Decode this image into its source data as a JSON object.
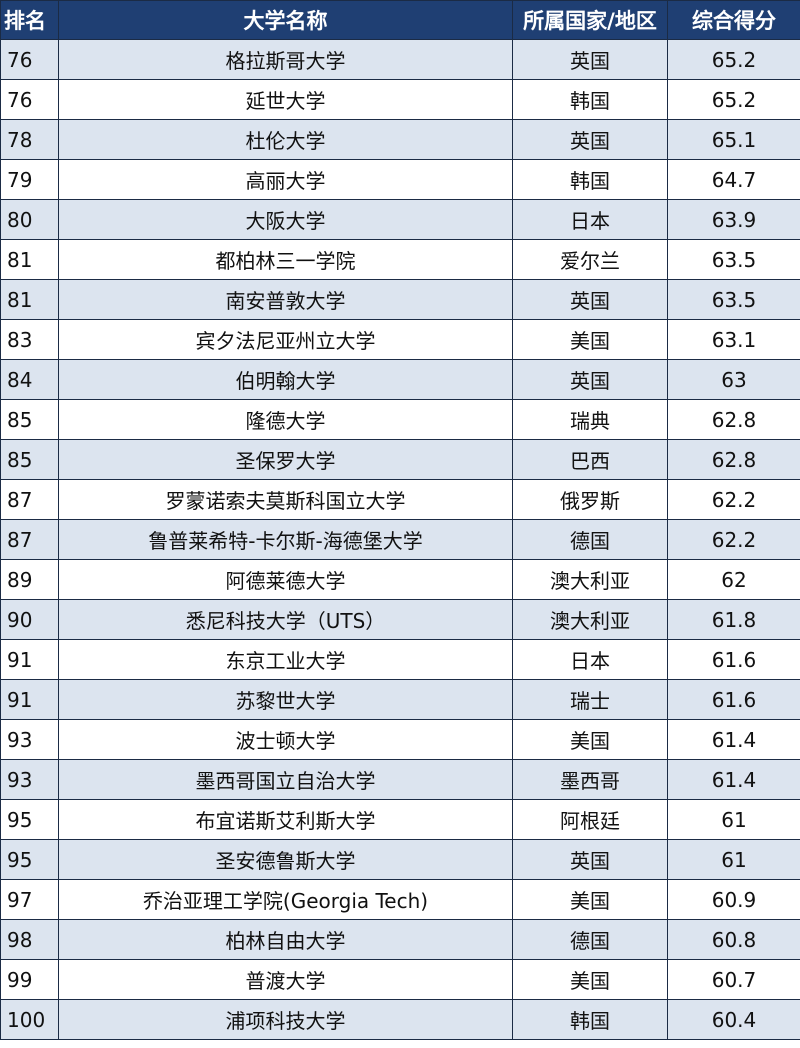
{
  "table": {
    "headers": {
      "rank": "排名",
      "name": "大学名称",
      "region": "所属国家/地区",
      "score": "综合得分"
    },
    "rows": [
      {
        "rank": "76",
        "name": "格拉斯哥大学",
        "region": "英国",
        "score": "65.2"
      },
      {
        "rank": "76",
        "name": "延世大学",
        "region": "韩国",
        "score": "65.2"
      },
      {
        "rank": "78",
        "name": "杜伦大学",
        "region": "英国",
        "score": "65.1"
      },
      {
        "rank": "79",
        "name": "高丽大学",
        "region": "韩国",
        "score": "64.7"
      },
      {
        "rank": "80",
        "name": "大阪大学",
        "region": "日本",
        "score": "63.9"
      },
      {
        "rank": "81",
        "name": "都柏林三一学院",
        "region": "爱尔兰",
        "score": "63.5"
      },
      {
        "rank": "81",
        "name": "南安普敦大学",
        "region": "英国",
        "score": "63.5"
      },
      {
        "rank": "83",
        "name": "宾夕法尼亚州立大学",
        "region": "美国",
        "score": "63.1"
      },
      {
        "rank": "84",
        "name": "伯明翰大学",
        "region": "英国",
        "score": "63"
      },
      {
        "rank": "85",
        "name": "隆德大学",
        "region": "瑞典",
        "score": "62.8"
      },
      {
        "rank": "85",
        "name": "圣保罗大学",
        "region": "巴西",
        "score": "62.8"
      },
      {
        "rank": "87",
        "name": "罗蒙诺索夫莫斯科国立大学",
        "region": "俄罗斯",
        "score": "62.2"
      },
      {
        "rank": "87",
        "name": "鲁普莱希特-卡尔斯-海德堡大学",
        "region": "德国",
        "score": "62.2"
      },
      {
        "rank": "89",
        "name": "阿德莱德大学",
        "region": "澳大利亚",
        "score": "62"
      },
      {
        "rank": "90",
        "name": "悉尼科技大学（UTS）",
        "region": "澳大利亚",
        "score": "61.8"
      },
      {
        "rank": "91",
        "name": "东京工业大学",
        "region": "日本",
        "score": "61.6"
      },
      {
        "rank": "91",
        "name": "苏黎世大学",
        "region": "瑞士",
        "score": "61.6"
      },
      {
        "rank": "93",
        "name": "波士顿大学",
        "region": "美国",
        "score": "61.4"
      },
      {
        "rank": "93",
        "name": "墨西哥国立自治大学",
        "region": "墨西哥",
        "score": "61.4"
      },
      {
        "rank": "95",
        "name": "布宜诺斯艾利斯大学",
        "region": "阿根廷",
        "score": "61"
      },
      {
        "rank": "95",
        "name": "圣安德鲁斯大学",
        "region": "英国",
        "score": "61"
      },
      {
        "rank": "97",
        "name": "乔治亚理工学院(Georgia Tech)",
        "region": "美国",
        "score": "60.9"
      },
      {
        "rank": "98",
        "name": "柏林自由大学",
        "region": "德国",
        "score": "60.8"
      },
      {
        "rank": "99",
        "name": "普渡大学",
        "region": "美国",
        "score": "60.7"
      },
      {
        "rank": "100",
        "name": "浦项科技大学",
        "region": "韩国",
        "score": "60.4"
      }
    ]
  },
  "colors": {
    "header_bg": "#1f3f73",
    "header_text": "#ffffff",
    "stripe_row": "#dce4ef",
    "plain_row": "#ffffff",
    "border": "#1b2b45"
  }
}
